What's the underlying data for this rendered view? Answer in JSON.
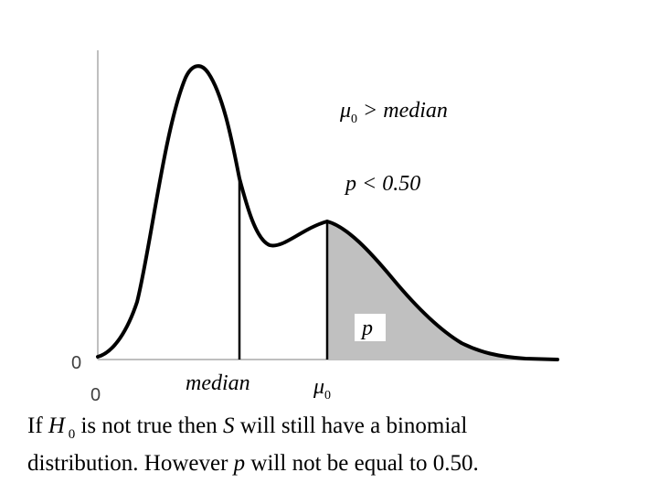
{
  "diagram": {
    "mu_symbol": "μ",
    "mu_subscript": "0",
    "top_label_rest": " > median",
    "p_condition": "p < 0.50",
    "shaded_label": "p",
    "x_tick_zero": "0",
    "y_tick_zero": "0",
    "x_label_median": "median",
    "x_label_mu": "μ",
    "x_label_mu_subscript": "0",
    "shade_color": "#c0c0c0"
  },
  "caption": {
    "line1_part1": "If ",
    "h": "H",
    "h_sub": " 0",
    "line1_part2": " is not true then ",
    "s": "S",
    "line1_part3": " will still have a binomial",
    "line2_part1": "distribution. However ",
    "p": "p",
    "line2_part2": " will not be equal to 0.50."
  }
}
